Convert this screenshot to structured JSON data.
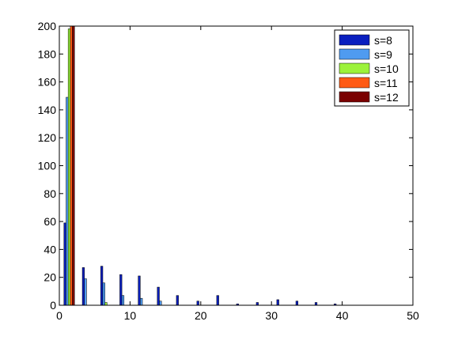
{
  "chart_data": {
    "type": "bar",
    "title": "",
    "xlabel": "",
    "ylabel": "",
    "xlim": [
      0,
      50
    ],
    "ylim": [
      0,
      200
    ],
    "xticks": [
      0,
      10,
      20,
      30,
      40,
      50
    ],
    "yticks": [
      0,
      20,
      40,
      60,
      80,
      100,
      120,
      140,
      160,
      180,
      200
    ],
    "grid": false,
    "legend_position": "top-right",
    "group_offsets": [
      -0.6,
      -0.3,
      0,
      0.3,
      0.6
    ],
    "series": [
      {
        "name": "s=8",
        "color": "#0a1fbf",
        "x": [
          0.8,
          3.4,
          6.0,
          8.7,
          11.3,
          14.0,
          16.7,
          19.6,
          22.4,
          25.2,
          28.0,
          30.9,
          33.6,
          36.3,
          39.0
        ],
        "values": [
          59,
          27,
          28,
          22,
          21,
          13,
          7,
          3,
          7,
          1,
          2,
          4,
          3,
          2,
          1
        ]
      },
      {
        "name": "s=9",
        "color": "#4f9bf0",
        "x": [
          1.1,
          3.7,
          6.3,
          9.0,
          11.6,
          14.3
        ],
        "values": [
          149,
          19,
          16,
          7,
          5,
          3
        ]
      },
      {
        "name": "s=10",
        "color": "#9cf23a",
        "x": [
          1.4,
          6.6
        ],
        "values": [
          198,
          2
        ]
      },
      {
        "name": "s=11",
        "color": "#ff5a14",
        "x": [
          1.7
        ],
        "values": [
          200
        ]
      },
      {
        "name": "s=12",
        "color": "#7a0000",
        "x": [
          2.0
        ],
        "values": [
          200
        ]
      }
    ]
  }
}
